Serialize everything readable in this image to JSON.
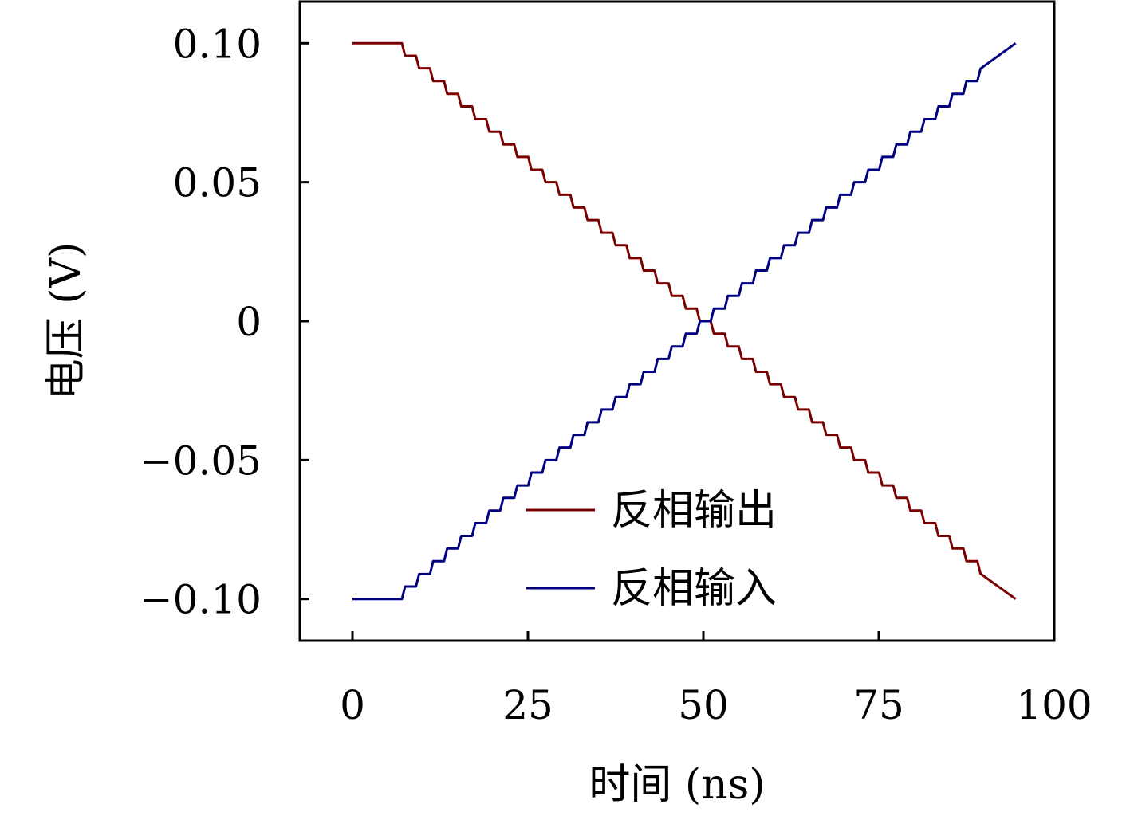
{
  "chart_data": {
    "type": "line",
    "title": "",
    "xlabel": "时间 (ns)",
    "ylabel": "电压 (V)",
    "xlim": [
      -7.5,
      100
    ],
    "ylim": [
      -0.115,
      0.115
    ],
    "xticks": [
      0,
      25,
      50,
      75,
      100
    ],
    "xtick_labels": [
      "0",
      "25",
      "50",
      "75",
      "100"
    ],
    "yticks": [
      0.1,
      0.05,
      0,
      -0.05,
      -0.1
    ],
    "ytick_labels": [
      "0.10",
      "0.05",
      "0",
      "−0.05",
      "−0.10"
    ],
    "grid": false,
    "legend_position": "bottom-center",
    "line_style": "step",
    "step_ns": 2,
    "series": [
      {
        "name": "反相输出",
        "color": "#7a0000",
        "x": [
          0,
          5.5,
          7.5,
          9.5,
          11.5,
          13.5,
          15.5,
          17.5,
          19.5,
          21.5,
          23.5,
          25.5,
          27.5,
          29.5,
          31.5,
          33.5,
          35.5,
          37.5,
          39.5,
          41.5,
          43.5,
          45.5,
          47.5,
          49.5,
          51.5,
          53.5,
          55.5,
          57.5,
          59.5,
          61.5,
          63.5,
          65.5,
          67.5,
          69.5,
          71.5,
          73.5,
          75.5,
          77.5,
          79.5,
          81.5,
          83.5,
          85.5,
          87.5,
          89.5,
          94.5
        ],
        "y": [
          0.1,
          0.1,
          0.0955,
          0.091,
          0.0864,
          0.0818,
          0.0773,
          0.0727,
          0.0682,
          0.0636,
          0.0591,
          0.0545,
          0.05,
          0.0455,
          0.0409,
          0.0364,
          0.0318,
          0.0273,
          0.0227,
          0.0182,
          0.0136,
          0.0091,
          0.0045,
          -0.0,
          -0.0045,
          -0.0091,
          -0.0136,
          -0.0182,
          -0.0227,
          -0.0273,
          -0.0318,
          -0.0364,
          -0.0409,
          -0.0455,
          -0.05,
          -0.0545,
          -0.0591,
          -0.0636,
          -0.0682,
          -0.0727,
          -0.0773,
          -0.0818,
          -0.0864,
          -0.0909,
          -0.1
        ]
      },
      {
        "name": "反相输入",
        "color": "#000080",
        "x": [
          0,
          5.5,
          7.5,
          9.5,
          11.5,
          13.5,
          15.5,
          17.5,
          19.5,
          21.5,
          23.5,
          25.5,
          27.5,
          29.5,
          31.5,
          33.5,
          35.5,
          37.5,
          39.5,
          41.5,
          43.5,
          45.5,
          47.5,
          49.5,
          51.5,
          53.5,
          55.5,
          57.5,
          59.5,
          61.5,
          63.5,
          65.5,
          67.5,
          69.5,
          71.5,
          73.5,
          75.5,
          77.5,
          79.5,
          81.5,
          83.5,
          85.5,
          87.5,
          89.5,
          94.5
        ],
        "y": [
          -0.1,
          -0.1,
          -0.0955,
          -0.091,
          -0.0864,
          -0.0818,
          -0.0773,
          -0.0727,
          -0.0682,
          -0.0636,
          -0.0591,
          -0.0545,
          -0.05,
          -0.0455,
          -0.0409,
          -0.0364,
          -0.0318,
          -0.0273,
          -0.0227,
          -0.0182,
          -0.0136,
          -0.0091,
          -0.0045,
          0.0,
          0.0045,
          0.0091,
          0.0136,
          0.0182,
          0.0227,
          0.0273,
          0.0318,
          0.0364,
          0.0409,
          0.0455,
          0.05,
          0.0545,
          0.0591,
          0.0636,
          0.0682,
          0.0727,
          0.0773,
          0.0818,
          0.0864,
          0.0909,
          0.1
        ]
      }
    ]
  }
}
